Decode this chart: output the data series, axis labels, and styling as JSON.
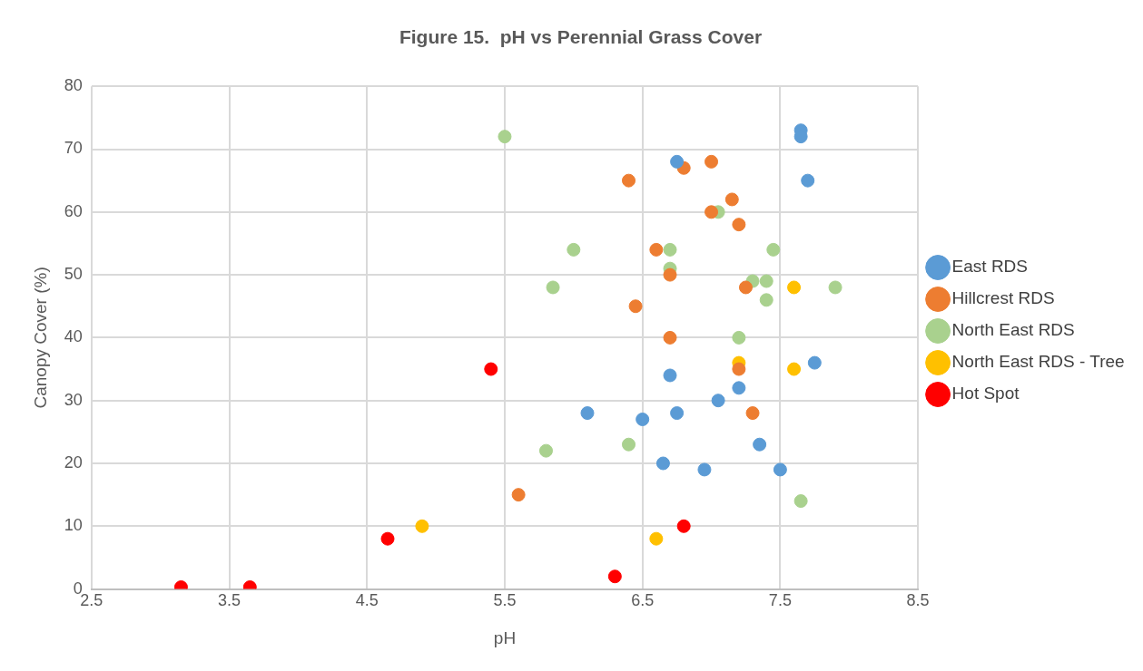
{
  "chart_data": {
    "type": "scatter",
    "title": "Figure 15.  pH vs Perennial Grass Cover",
    "xlabel": "pH",
    "ylabel": "Canopy Cover (%)",
    "xlim": [
      2.5,
      8.5
    ],
    "xticks": [
      2.5,
      3.5,
      4.5,
      5.5,
      6.5,
      7.5,
      8.5
    ],
    "ylim": [
      0,
      80
    ],
    "yticks": [
      0,
      10,
      20,
      30,
      40,
      50,
      60,
      70,
      80
    ],
    "grid": true,
    "legend": "right",
    "marker": "circle",
    "series": [
      {
        "name": "East RDS",
        "color": "#5b9bd5",
        "x": [
          7.65,
          7.65,
          6.75,
          7.7,
          7.75,
          6.7,
          7.2,
          7.05,
          6.1,
          6.75,
          6.5,
          7.35,
          6.65,
          6.95,
          7.5
        ],
        "values": [
          73,
          72,
          68,
          65,
          36,
          34,
          32,
          30,
          28,
          28,
          27,
          23,
          20,
          19,
          19
        ]
      },
      {
        "name": "Hillcrest RDS",
        "color": "#ed7d31",
        "x": [
          6.4,
          6.8,
          7.0,
          7.15,
          7.0,
          7.2,
          6.6,
          6.7,
          7.25,
          6.45,
          6.7,
          7.2,
          7.3,
          5.6
        ],
        "values": [
          65,
          67,
          68,
          62,
          60,
          58,
          54,
          50,
          48,
          45,
          40,
          35,
          28,
          15
        ]
      },
      {
        "name": "North East RDS",
        "color": "#a9d18e",
        "x": [
          5.5,
          7.05,
          6.0,
          6.7,
          7.45,
          6.7,
          5.85,
          7.3,
          7.4,
          7.9,
          7.4,
          7.2,
          5.8,
          6.4,
          7.65
        ],
        "values": [
          72,
          60,
          54,
          54,
          54,
          51,
          48,
          49,
          49,
          48,
          46,
          40,
          22,
          23,
          14
        ]
      },
      {
        "name": "North East RDS - Tree",
        "color": "#ffc000",
        "x": [
          7.6,
          7.2,
          7.6,
          4.9,
          6.6
        ],
        "values": [
          48,
          36,
          35,
          10,
          8
        ]
      },
      {
        "name": "Hot Spot",
        "color": "#ff0000",
        "x": [
          5.4,
          3.15,
          3.65,
          4.65,
          6.3,
          6.8
        ],
        "values": [
          35,
          0.3,
          0.3,
          8,
          2,
          10
        ]
      }
    ]
  }
}
